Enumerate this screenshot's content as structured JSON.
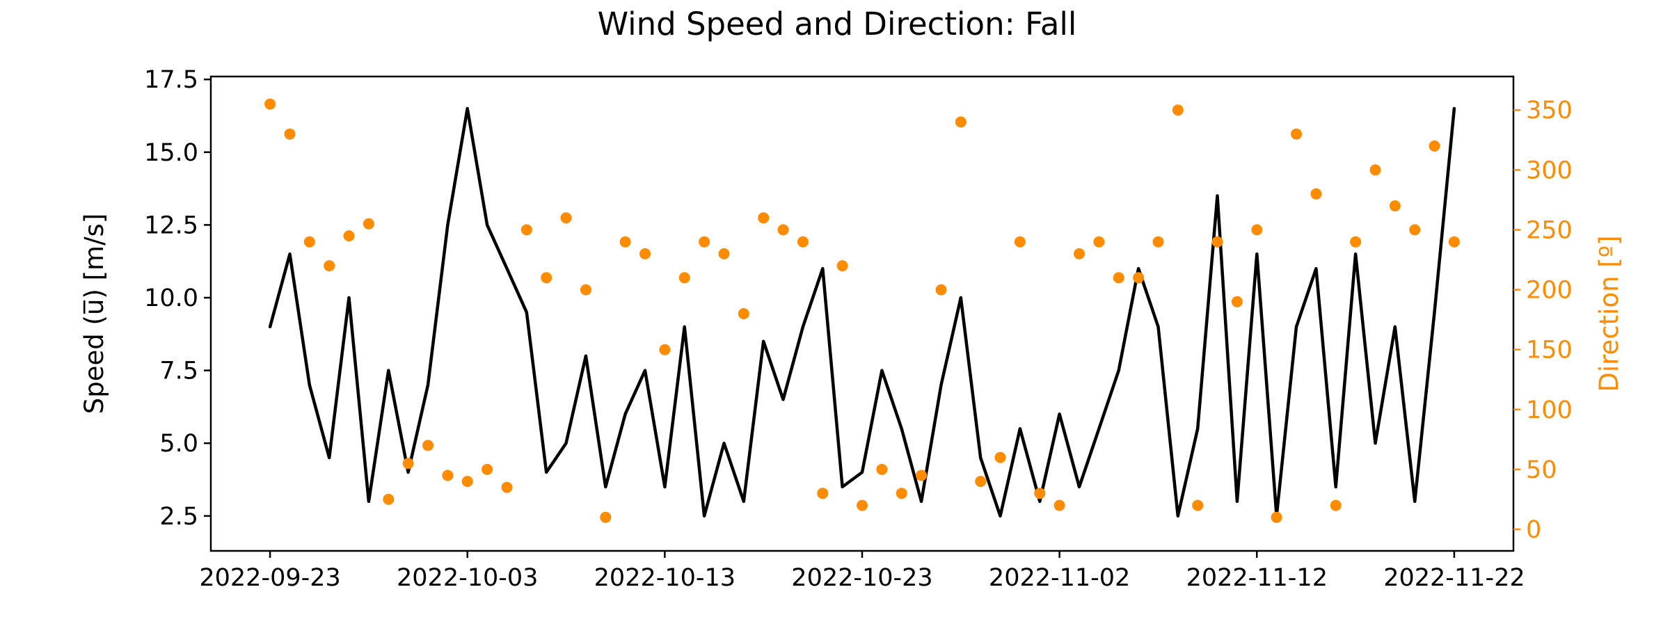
{
  "chart_data": {
    "type": "line",
    "title": "Wind Speed and Direction: Fall",
    "xlabel": "",
    "ylabel": "Speed (u̅) [m/s]",
    "y2label": "Direction [º]",
    "x_range": [
      "2022-09-23",
      "2022-11-22"
    ],
    "xlim": [
      "2022-09-20",
      "2022-11-25"
    ],
    "ylim": [
      1.3,
      17.6
    ],
    "y2lim": [
      -18,
      378
    ],
    "x_ticks": [
      "2022-09-23",
      "2022-10-03",
      "2022-10-13",
      "2022-10-23",
      "2022-11-02",
      "2022-11-12",
      "2022-11-22"
    ],
    "y_ticks": [
      2.5,
      5.0,
      7.5,
      10.0,
      12.5,
      15.0,
      17.5
    ],
    "y_tick_labels": [
      "2.5",
      "5.0",
      "7.5",
      "10.0",
      "12.5",
      "15.0",
      "17.5"
    ],
    "y2_ticks": [
      0,
      50,
      100,
      150,
      200,
      250,
      300,
      350
    ],
    "y2_tick_labels": [
      "0",
      "50",
      "100",
      "150",
      "200",
      "250",
      "300",
      "350"
    ],
    "grid": false,
    "colors": {
      "speed": "#000000",
      "direction": "#ff8c00"
    },
    "series": [
      {
        "axis": "left",
        "style": "line",
        "x": [
          "2022-09-23",
          "2022-09-24",
          "2022-09-25",
          "2022-09-26",
          "2022-09-27",
          "2022-09-28",
          "2022-09-29",
          "2022-09-30",
          "2022-10-01",
          "2022-10-02",
          "2022-10-03",
          "2022-10-04",
          "2022-10-05",
          "2022-10-06",
          "2022-10-07",
          "2022-10-08",
          "2022-10-09",
          "2022-10-10",
          "2022-10-11",
          "2022-10-12",
          "2022-10-13",
          "2022-10-14",
          "2022-10-15",
          "2022-10-16",
          "2022-10-17",
          "2022-10-18",
          "2022-10-19",
          "2022-10-20",
          "2022-10-21",
          "2022-10-22",
          "2022-10-23",
          "2022-10-24",
          "2022-10-25",
          "2022-10-26",
          "2022-10-27",
          "2022-10-28",
          "2022-10-29",
          "2022-10-30",
          "2022-10-31",
          "2022-11-01",
          "2022-11-02",
          "2022-11-03",
          "2022-11-04",
          "2022-11-05",
          "2022-11-06",
          "2022-11-07",
          "2022-11-08",
          "2022-11-09",
          "2022-11-10",
          "2022-11-11",
          "2022-11-12",
          "2022-11-13",
          "2022-11-14",
          "2022-11-15",
          "2022-11-16",
          "2022-11-17",
          "2022-11-18",
          "2022-11-19",
          "2022-11-20",
          "2022-11-21",
          "2022-11-22"
        ],
        "y": [
          9.0,
          11.5,
          7.0,
          4.5,
          10.0,
          3.0,
          7.5,
          4.0,
          7.0,
          12.5,
          16.5,
          12.5,
          11.0,
          9.5,
          4.0,
          5.0,
          8.0,
          3.5,
          6.0,
          7.5,
          3.5,
          9.0,
          2.5,
          5.0,
          3.0,
          8.5,
          6.5,
          9.0,
          11.0,
          3.5,
          4.0,
          7.5,
          5.5,
          3.0,
          7.0,
          10.0,
          4.5,
          2.5,
          5.5,
          3.0,
          6.0,
          3.5,
          5.5,
          7.5,
          11.0,
          9.0,
          2.5,
          5.5,
          13.5,
          3.0,
          11.5,
          2.5,
          9.0,
          11.0,
          3.5,
          11.5,
          5.0,
          9.0,
          3.0,
          9.5,
          16.5
        ]
      },
      {
        "axis": "right",
        "style": "scatter",
        "x": [
          "2022-09-23",
          "2022-09-24",
          "2022-09-25",
          "2022-09-26",
          "2022-09-27",
          "2022-09-28",
          "2022-09-29",
          "2022-09-30",
          "2022-10-01",
          "2022-10-02",
          "2022-10-03",
          "2022-10-04",
          "2022-10-05",
          "2022-10-06",
          "2022-10-07",
          "2022-10-08",
          "2022-10-09",
          "2022-10-10",
          "2022-10-11",
          "2022-10-12",
          "2022-10-13",
          "2022-10-14",
          "2022-10-15",
          "2022-10-16",
          "2022-10-17",
          "2022-10-18",
          "2022-10-19",
          "2022-10-20",
          "2022-10-21",
          "2022-10-22",
          "2022-10-23",
          "2022-10-24",
          "2022-10-25",
          "2022-10-26",
          "2022-10-27",
          "2022-10-28",
          "2022-10-29",
          "2022-10-30",
          "2022-10-31",
          "2022-11-01",
          "2022-11-02",
          "2022-11-03",
          "2022-11-04",
          "2022-11-05",
          "2022-11-06",
          "2022-11-07",
          "2022-11-08",
          "2022-11-09",
          "2022-11-10",
          "2022-11-11",
          "2022-11-12",
          "2022-11-13",
          "2022-11-14",
          "2022-11-15",
          "2022-11-16",
          "2022-11-17",
          "2022-11-18",
          "2022-11-19",
          "2022-11-20",
          "2022-11-21",
          "2022-11-22"
        ],
        "y": [
          355,
          330,
          240,
          220,
          245,
          255,
          25,
          55,
          70,
          45,
          40,
          50,
          35,
          250,
          210,
          260,
          200,
          10,
          240,
          230,
          150,
          210,
          240,
          230,
          180,
          260,
          250,
          240,
          30,
          220,
          20,
          50,
          30,
          45,
          200,
          340,
          40,
          60,
          240,
          30,
          20,
          230,
          240,
          210,
          210,
          240,
          350,
          20,
          240,
          190,
          250,
          10,
          330,
          280,
          20,
          240,
          300,
          270,
          250,
          320,
          240
        ]
      }
    ]
  }
}
